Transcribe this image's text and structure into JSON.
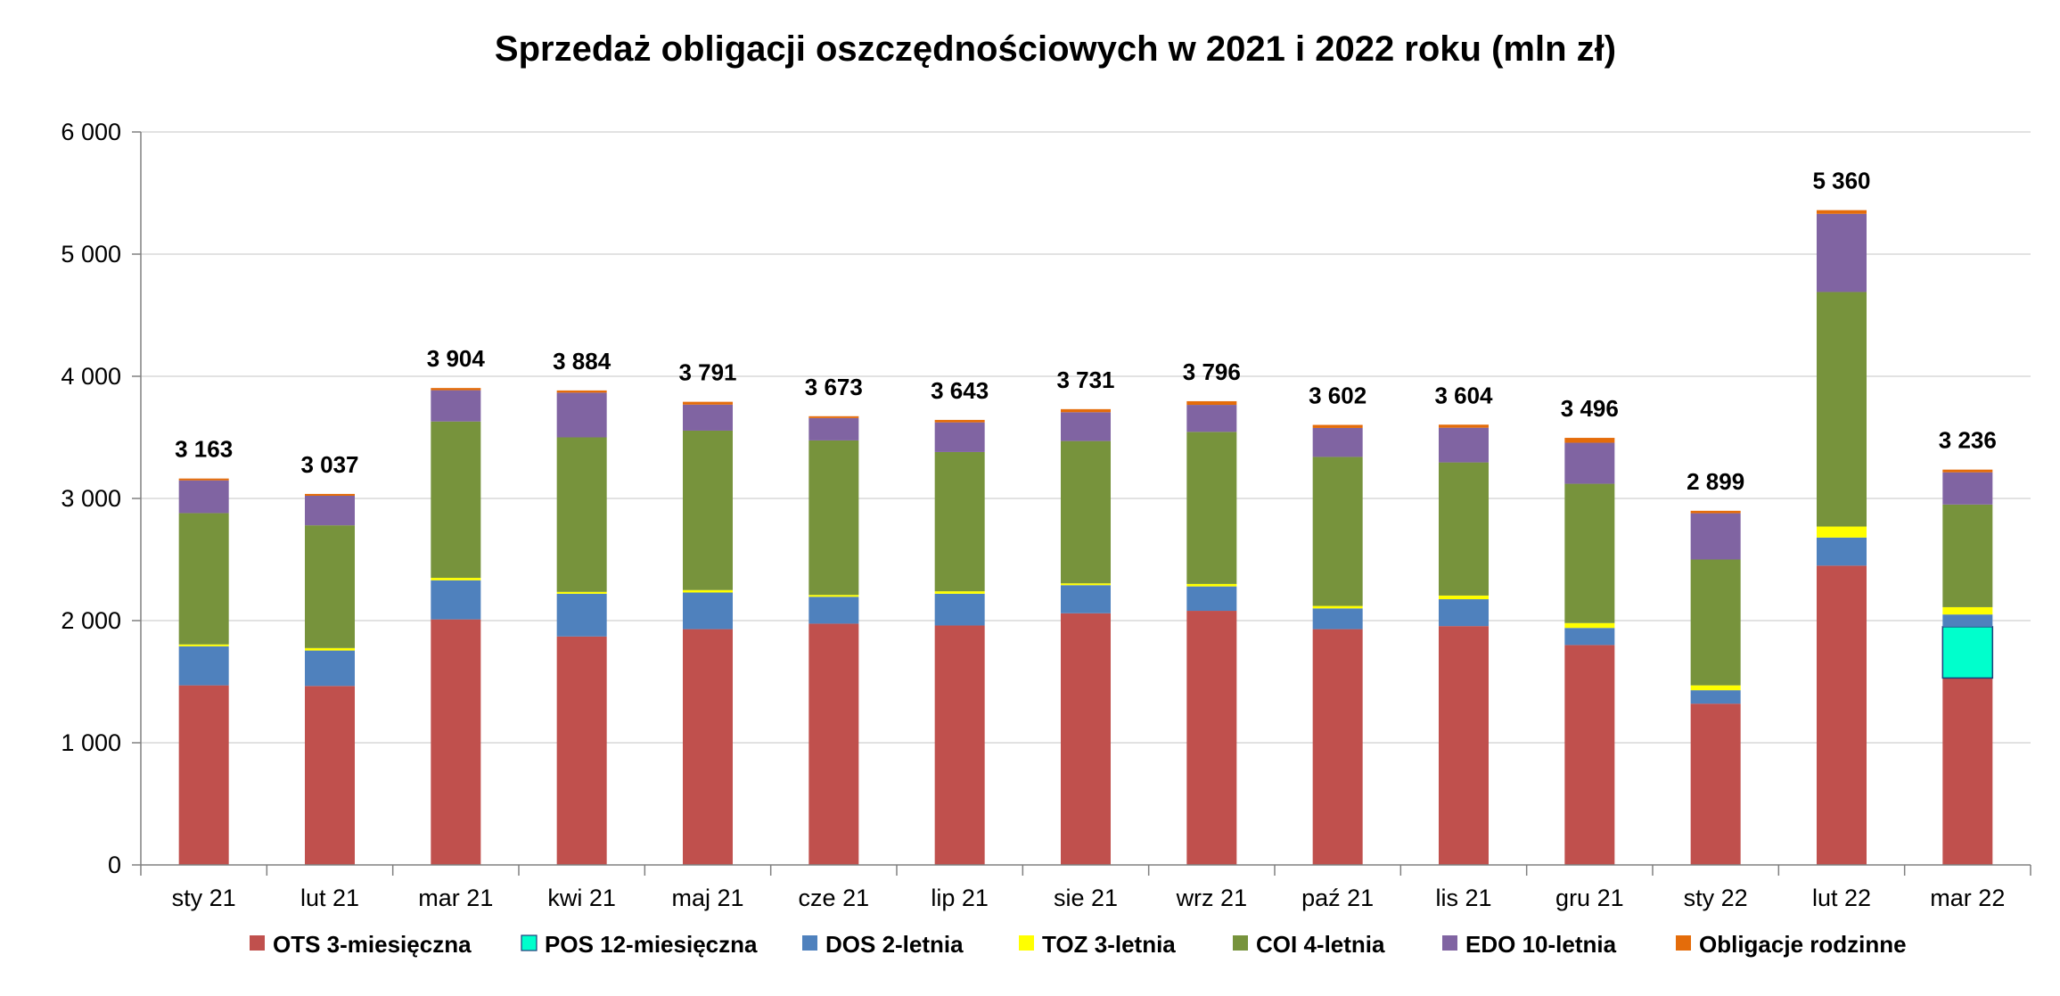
{
  "chart_data": {
    "type": "bar",
    "stacked": true,
    "title": "Sprzedaż obligacji oszczędnościowych w 2021 i 2022 roku (mln zł)",
    "xlabel": "",
    "ylabel": "",
    "ylim": [
      0,
      6000
    ],
    "yticks": [
      0,
      1000,
      2000,
      3000,
      4000,
      5000,
      6000
    ],
    "ytick_labels": [
      "0",
      "1 000",
      "2 000",
      "3 000",
      "4 000",
      "5 000",
      "6 000"
    ],
    "grid": true,
    "legend_position": "bottom",
    "categories": [
      "sty 21",
      "lut 21",
      "mar 21",
      "kwi 21",
      "maj 21",
      "cze 21",
      "lip 21",
      "sie 21",
      "wrz 21",
      "paź 21",
      "lis 21",
      "gru 21",
      "sty 22",
      "lut 22",
      "mar 22"
    ],
    "totals": [
      3163,
      3037,
      3904,
      3884,
      3791,
      3673,
      3643,
      3731,
      3796,
      3602,
      3604,
      3496,
      2899,
      5360,
      3236
    ],
    "total_labels": [
      "3 163",
      "3 037",
      "3 904",
      "3 884",
      "3 791",
      "3 673",
      "3 643",
      "3 731",
      "3 796",
      "3 602",
      "3 604",
      "3 496",
      "2 899",
      "5 360",
      "3 236"
    ],
    "series": [
      {
        "name": "OTS 3-miesięczna",
        "color": "#C0504D",
        "values": [
          1470,
          1465,
          2010,
          1870,
          1930,
          1975,
          1960,
          2060,
          2080,
          1930,
          1955,
          1800,
          1320,
          2450,
          1530
        ]
      },
      {
        "name": "POS 12-miesięczna",
        "color": "#00FFCC",
        "values": [
          0,
          0,
          0,
          0,
          0,
          0,
          0,
          0,
          0,
          0,
          0,
          0,
          0,
          0,
          420
        ]
      },
      {
        "name": "DOS 2-letnia",
        "color": "#4F81BD",
        "values": [
          320,
          290,
          320,
          350,
          300,
          220,
          260,
          230,
          200,
          170,
          220,
          140,
          110,
          230,
          100
        ]
      },
      {
        "name": "TOZ 3-letnia",
        "color": "#FFFF00",
        "values": [
          15,
          20,
          20,
          15,
          20,
          15,
          20,
          15,
          20,
          20,
          30,
          40,
          40,
          90,
          60
        ]
      },
      {
        "name": "COI 4-letnia",
        "color": "#77933C",
        "values": [
          1075,
          1005,
          1280,
          1265,
          1305,
          1265,
          1140,
          1165,
          1245,
          1220,
          1090,
          1140,
          1030,
          1920,
          840
        ]
      },
      {
        "name": "EDO 10-letnia",
        "color": "#8064A2",
        "values": [
          268,
          242,
          256,
          366,
          213,
          183,
          243,
          236,
          221,
          237,
          284,
          336,
          379,
          640,
          264
        ]
      },
      {
        "name": "Obligacje rodzinne",
        "color": "#E46C0A",
        "values": [
          15,
          15,
          18,
          18,
          23,
          15,
          20,
          25,
          30,
          25,
          25,
          40,
          20,
          30,
          22
        ]
      }
    ]
  }
}
